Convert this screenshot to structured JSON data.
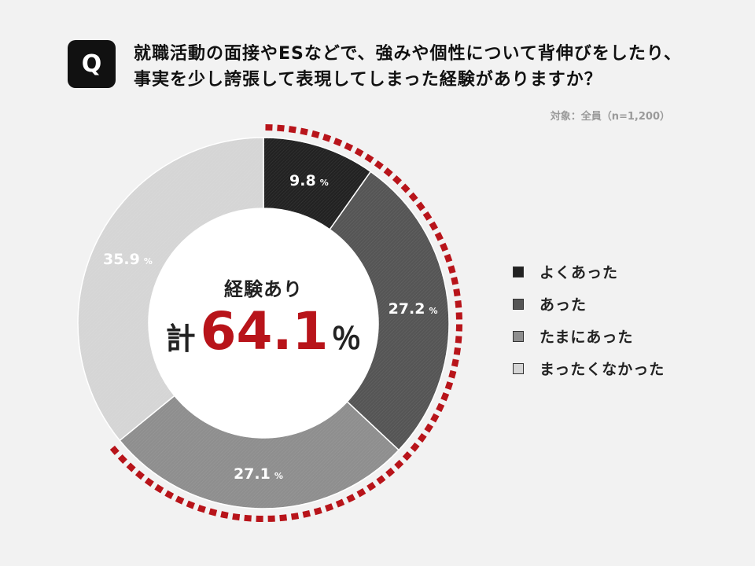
{
  "question": {
    "badge": "Q",
    "line1": "就職活動の面接やESなどで、強みや個性について背伸びをしたり、",
    "line2": "事実を少し誇張して表現してしまった経験がありますか？"
  },
  "scope": "対象：全員（n=1,200）",
  "center": {
    "label": "経験あり",
    "prefix": "計",
    "value": "64.1",
    "unit": "％"
  },
  "chart_data": {
    "type": "pie",
    "categories": [
      "よくあった",
      "あった",
      "たまにあった",
      "まったくなかった"
    ],
    "values": [
      9.8,
      27.2,
      27.1,
      35.9
    ],
    "value_labels": [
      "9.8",
      "27.2",
      "27.1",
      "35.9"
    ],
    "unit": "%",
    "colors": [
      "#222222",
      "#555555",
      "#8e8e8e",
      "#d5d5d5"
    ],
    "label_colors": [
      "#ffffff",
      "#ffffff",
      "#ffffff",
      "#ffffff"
    ],
    "highlight_color": "#b8141a",
    "highlight_series": [
      "よくあった",
      "あった",
      "たまにあった"
    ],
    "legend_position": "right"
  }
}
